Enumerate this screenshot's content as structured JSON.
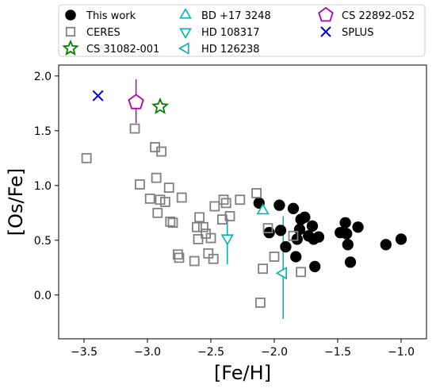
{
  "chart_data": {
    "type": "scatter",
    "xlabel": "[Fe/H]",
    "ylabel": "[Os/Fe]",
    "xlim": [
      -3.7,
      -0.8
    ],
    "ylim": [
      -0.4,
      2.1
    ],
    "x_ticks": [
      -3.5,
      -3.0,
      -2.5,
      -2.0,
      -1.5,
      -1.0
    ],
    "y_ticks": [
      0.0,
      0.5,
      1.0,
      1.5,
      2.0
    ],
    "x_tick_labels": [
      "−3.5",
      "−3.0",
      "−2.5",
      "−2.0",
      "−1.5",
      "−1.0"
    ],
    "y_tick_labels": [
      "0.0",
      "0.5",
      "1.0",
      "1.5",
      "2.0"
    ],
    "grid": false,
    "legend_position": "top",
    "series": [
      {
        "name": "This work",
        "marker": "filled-circle",
        "color": "#000000",
        "points": [
          [
            -2.12,
            0.84
          ],
          [
            -2.04,
            0.57
          ],
          [
            -1.96,
            0.82
          ],
          [
            -1.95,
            0.59
          ],
          [
            -1.91,
            0.44
          ],
          [
            -1.85,
            0.79
          ],
          [
            -1.83,
            0.35
          ],
          [
            -1.82,
            0.51
          ],
          [
            -1.8,
            0.6
          ],
          [
            -1.79,
            0.69
          ],
          [
            -1.76,
            0.71
          ],
          [
            -1.73,
            0.54
          ],
          [
            -1.7,
            0.63
          ],
          [
            -1.69,
            0.51
          ],
          [
            -1.68,
            0.26
          ],
          [
            -1.65,
            0.53
          ],
          [
            -1.48,
            0.57
          ],
          [
            -1.44,
            0.66
          ],
          [
            -1.43,
            0.56
          ],
          [
            -1.42,
            0.46
          ],
          [
            -1.4,
            0.3
          ],
          [
            -1.34,
            0.62
          ],
          [
            -1.12,
            0.46
          ],
          [
            -1.0,
            0.51
          ]
        ]
      },
      {
        "name": "CERES",
        "marker": "open-square",
        "color": "#808080",
        "points": [
          [
            -3.48,
            1.25
          ],
          [
            -3.1,
            1.52
          ],
          [
            -3.06,
            1.01
          ],
          [
            -2.98,
            0.88
          ],
          [
            -2.94,
            1.35
          ],
          [
            -2.93,
            1.07
          ],
          [
            -2.92,
            0.75
          ],
          [
            -2.9,
            0.87
          ],
          [
            -2.89,
            1.31
          ],
          [
            -2.86,
            0.85
          ],
          [
            -2.83,
            0.98
          ],
          [
            -2.82,
            0.67
          ],
          [
            -2.8,
            0.66
          ],
          [
            -2.76,
            0.37
          ],
          [
            -2.75,
            0.34
          ],
          [
            -2.73,
            0.89
          ],
          [
            -2.63,
            0.31
          ],
          [
            -2.61,
            0.62
          ],
          [
            -2.6,
            0.51
          ],
          [
            -2.59,
            0.71
          ],
          [
            -2.56,
            0.62
          ],
          [
            -2.54,
            0.56
          ],
          [
            -2.52,
            0.38
          ],
          [
            -2.5,
            0.52
          ],
          [
            -2.48,
            0.33
          ],
          [
            -2.47,
            0.81
          ],
          [
            -2.41,
            0.69
          ],
          [
            -2.4,
            0.87
          ],
          [
            -2.38,
            0.84
          ],
          [
            -2.35,
            0.72
          ],
          [
            -2.27,
            0.87
          ],
          [
            -2.14,
            0.93
          ],
          [
            -2.11,
            -0.07
          ],
          [
            -2.09,
            0.24
          ],
          [
            -2.05,
            0.61
          ],
          [
            -2.0,
            0.35
          ],
          [
            -1.85,
            0.54
          ],
          [
            -1.79,
            0.21
          ]
        ]
      },
      {
        "name": "CS 31082-001",
        "marker": "open-star",
        "color": "#008000",
        "points": [
          [
            -2.9,
            1.72
          ]
        ]
      },
      {
        "name": "BD +17 3248",
        "marker": "open-triangle-up",
        "color": "#00b3b3",
        "points": [
          [
            -2.09,
            0.77
          ]
        ]
      },
      {
        "name": "HD 108317",
        "marker": "open-triangle-down",
        "color": "#00b3b3",
        "points": [
          [
            -2.37,
            0.52
          ]
        ],
        "error_y": [
          [
            0.28,
            0.7
          ]
        ]
      },
      {
        "name": "HD 126238",
        "marker": "open-triangle-left",
        "color": "#00b3b3",
        "points": [
          [
            -1.93,
            0.2
          ]
        ],
        "error_y": [
          [
            -0.22,
            0.72
          ]
        ]
      },
      {
        "name": "CS 22892-052",
        "marker": "open-pentagon",
        "color": "#b000b0",
        "points": [
          [
            -3.09,
            1.76
          ]
        ],
        "error_y": [
          [
            1.57,
            1.97
          ]
        ]
      },
      {
        "name": "SPLUS",
        "marker": "x",
        "color": "#0000cc",
        "points": [
          [
            -3.39,
            1.82
          ]
        ]
      }
    ]
  }
}
